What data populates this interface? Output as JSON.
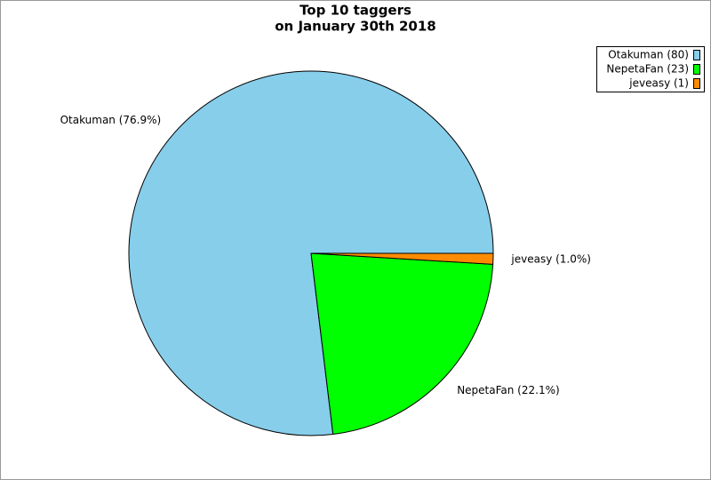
{
  "chart_data": {
    "type": "pie",
    "title": [
      "Top 10 taggers",
      "on January 30th 2018"
    ],
    "categories": [
      "Otakuman (80)",
      "NepetaFan (23)",
      "jeveasy (1)"
    ],
    "values": [
      80,
      23,
      1
    ],
    "value_labels": [
      "Otakuman (76.9%)",
      "NepetaFan (22.1%)",
      "jeveasy (1.0%)"
    ],
    "colors": [
      "#87ceeb",
      "#00ff00",
      "#ff8c00"
    ],
    "legend": "top-right"
  }
}
